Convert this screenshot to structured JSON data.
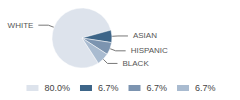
{
  "chart_data": {
    "type": "pie",
    "categories": [
      "WHITE",
      "ASIAN",
      "HISPANIC",
      "BLACK"
    ],
    "values": [
      80.0,
      6.7,
      6.7,
      6.7
    ],
    "value_labels": [
      "80.0%",
      "6.7%",
      "6.7%",
      "6.7%"
    ],
    "colors": [
      "#dde3ec",
      "#3d6588",
      "#7c94b0",
      "#a9bbd0"
    ],
    "legend": "bottom"
  }
}
